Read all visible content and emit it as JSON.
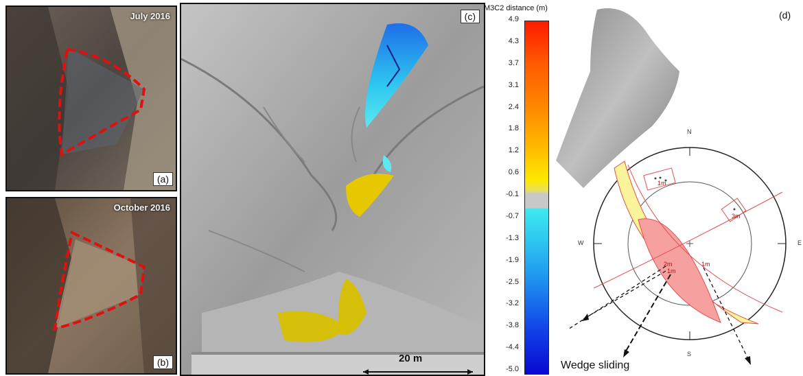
{
  "panel_a": {
    "title": "July 2016",
    "label": "(a)"
  },
  "panel_b": {
    "title": "October 2016",
    "label": "(b)"
  },
  "panel_c": {
    "label": "(c)",
    "scale_bar": "20 m"
  },
  "colorbar": {
    "title": "M3C2 distance (m)",
    "ticks": [
      "4.9",
      "4.3",
      "3.7",
      "3.1",
      "2.4",
      "1.8",
      "1.2",
      "0.6",
      "-0.1",
      "-0.7",
      "-1.3",
      "-1.9",
      "-2.5",
      "-3.2",
      "-3.8",
      "-4.4",
      "-5.0"
    ]
  },
  "panel_d": {
    "label": "(d)",
    "compass": {
      "n": "N",
      "s": "S",
      "e": "E",
      "w": "W"
    },
    "pole_labels": [
      "1m",
      "3m",
      "2m",
      "1m",
      "1m"
    ],
    "caption": "Wedge sliding"
  },
  "colors": {
    "outline_red": "#e01010",
    "wedge_fill": "#f7a0a0",
    "friction_fill": "#fbf49a",
    "mesh_gray": "#a8a8a8"
  }
}
